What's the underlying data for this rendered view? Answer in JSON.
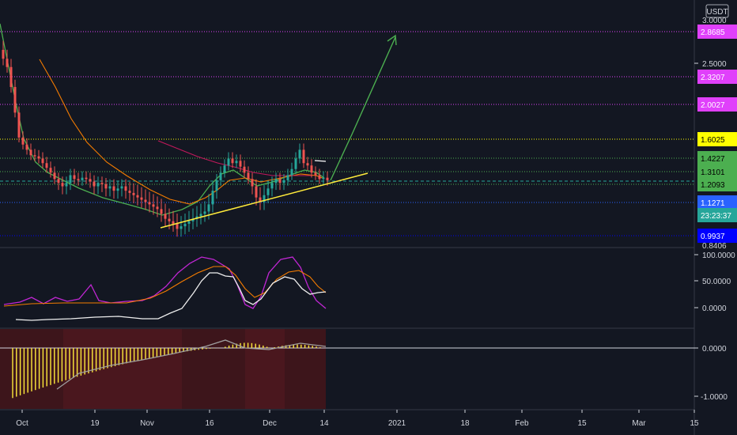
{
  "chart_data": {
    "type": "candlestick",
    "quote_currency": "USDT",
    "countdown": "23:23:37",
    "price_axis": {
      "ticks": [
        "2.5000"
      ],
      "top_partial": "3.0000",
      "bottom_partial": "0.8406"
    },
    "time_axis": {
      "labels": [
        "Oct",
        "19",
        "Nov",
        "16",
        "Dec",
        "14",
        "2021",
        "18",
        "Feb",
        "15",
        "Mar",
        "15"
      ]
    },
    "horizontal_levels": [
      {
        "label": "2.8685",
        "value": 2.8685,
        "color": "#e040fb"
      },
      {
        "label": "2.3207",
        "value": 2.3207,
        "color": "#e040fb"
      },
      {
        "label": "2.0027",
        "value": 2.0027,
        "color": "#e040fb"
      },
      {
        "label": "1.6025",
        "value": 1.6025,
        "color": "#ffff00"
      },
      {
        "label": "1.4227",
        "value": 1.4227,
        "color": "#4caf50"
      },
      {
        "label": "1.3101",
        "value": 1.3101,
        "color": "#4caf50"
      },
      {
        "label": "1.2093",
        "value": 1.2093,
        "color": "#4caf50"
      },
      {
        "label": "1.1271",
        "value": 1.1271,
        "color": "#2962ff"
      },
      {
        "label": "0.9937",
        "value": 0.9937,
        "color": "#0000ff"
      }
    ],
    "current_price": 1.235,
    "oscillator": {
      "ticks": [
        "100.0000",
        "50.0000",
        "0.0000"
      ]
    },
    "macd": {
      "ticks": [
        "0.0000",
        "-1.0000"
      ]
    }
  }
}
